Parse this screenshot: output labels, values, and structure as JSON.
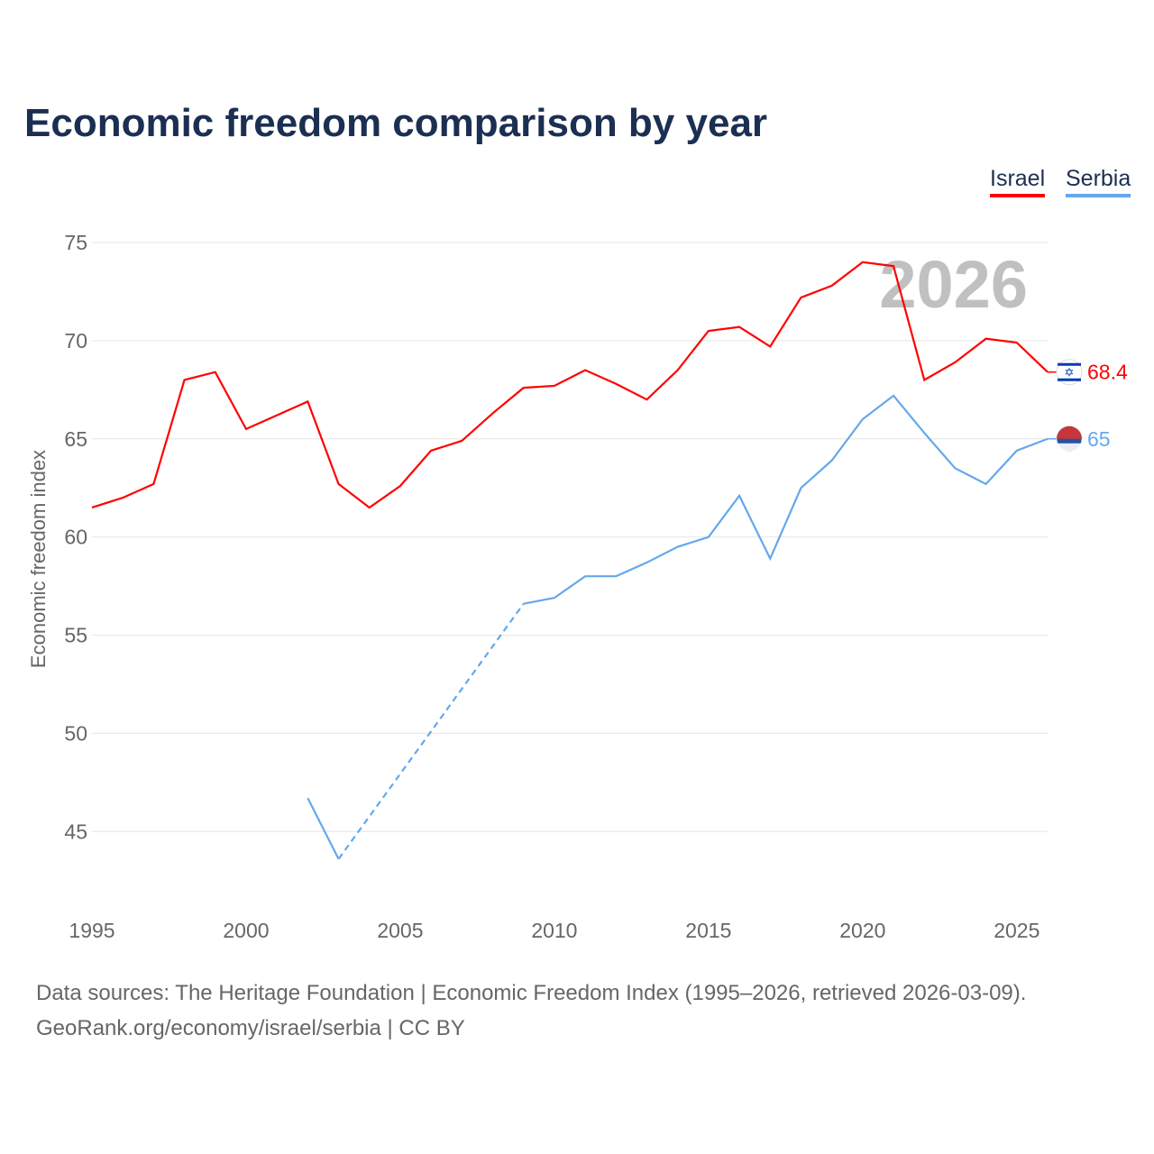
{
  "chart_data": {
    "type": "line",
    "title": "Economic freedom comparison by year",
    "ylabel": "Economic freedom index",
    "xlabel": "",
    "xlim": [
      1995,
      2026
    ],
    "ylim": [
      41.2,
      75
    ],
    "yticks": [
      45,
      50,
      55,
      60,
      65,
      70,
      75
    ],
    "xticks": [
      1995,
      2000,
      2005,
      2010,
      2015,
      2020,
      2025
    ],
    "watermark_year": "2026",
    "legend": "top-right",
    "series": [
      {
        "name": "Israel",
        "color": "#ff0000",
        "end_label": "68.4",
        "x": [
          1995,
          1996,
          1997,
          1998,
          1999,
          2000,
          2001,
          2002,
          2003,
          2004,
          2005,
          2006,
          2007,
          2008,
          2009,
          2010,
          2011,
          2012,
          2013,
          2014,
          2015,
          2016,
          2017,
          2018,
          2019,
          2020,
          2021,
          2022,
          2023,
          2024,
          2025,
          2026
        ],
        "values": [
          61.5,
          62.0,
          62.7,
          68.0,
          68.4,
          65.5,
          66.2,
          66.9,
          62.7,
          61.5,
          62.6,
          64.4,
          64.9,
          66.3,
          67.6,
          67.7,
          68.5,
          67.8,
          67.0,
          68.5,
          70.5,
          70.7,
          69.7,
          72.2,
          72.8,
          74.0,
          73.8,
          68.0,
          68.9,
          70.1,
          69.9,
          68.4
        ]
      },
      {
        "name": "Serbia",
        "color": "#64a8ec",
        "end_label": "65",
        "x": [
          2002,
          2003,
          2009,
          2010,
          2011,
          2012,
          2013,
          2014,
          2015,
          2016,
          2017,
          2018,
          2019,
          2020,
          2021,
          2022,
          2023,
          2024,
          2025,
          2026
        ],
        "values": [
          46.7,
          43.6,
          56.6,
          56.9,
          58.0,
          58.0,
          58.7,
          59.5,
          60.0,
          62.1,
          58.9,
          62.5,
          63.9,
          66.0,
          67.2,
          65.3,
          63.5,
          62.7,
          64.4,
          65.0
        ],
        "gap_after": 2003
      }
    ]
  },
  "sources": {
    "line1": "Data sources: The Heritage Foundation | Economic Freedom Index (1995–2026, retrieved 2026-03-09).",
    "line2": "GeoRank.org/economy/israel/serbia | CC BY"
  }
}
